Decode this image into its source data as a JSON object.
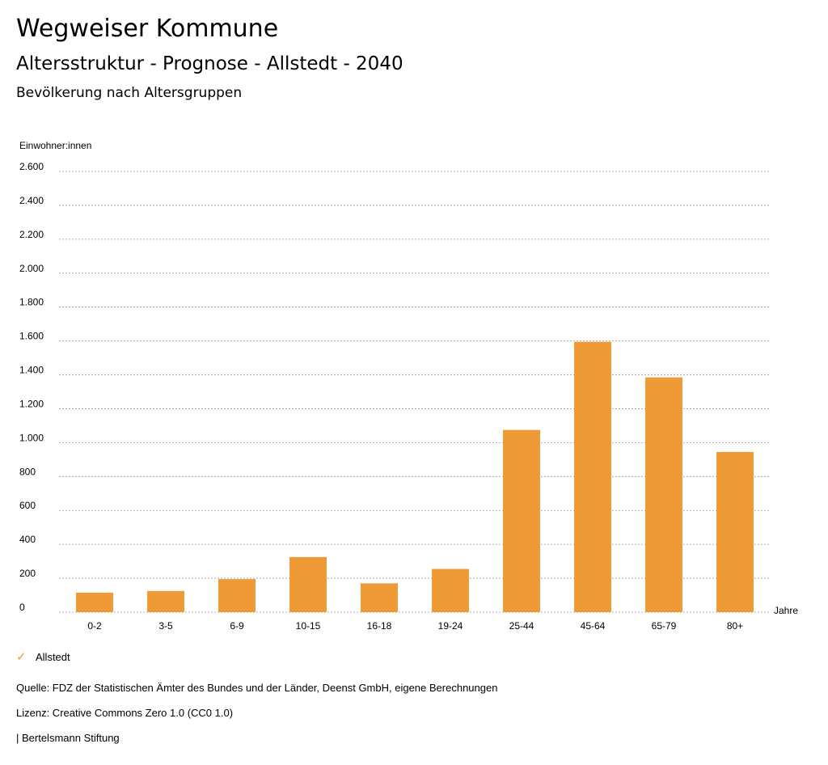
{
  "header": {
    "site_title": "Wegweiser Kommune",
    "page_title": "Altersstruktur - Prognose - Allstedt - 2040",
    "chart_title": "Bevölkerung nach Altersgruppen"
  },
  "legend": {
    "items": [
      {
        "label": "Allstedt",
        "icon": "check-icon",
        "color": "#ee9a37"
      }
    ]
  },
  "footer": {
    "source": "Quelle: FDZ der Statistischen Ämter des Bundes und der Länder, Deenst GmbH, eigene Berechnungen",
    "license": "Lizenz: Creative Commons Zero 1.0 (CC0 1.0)",
    "publisher": "| Bertelsmann Stiftung"
  },
  "chart_data": {
    "type": "bar",
    "title": "Bevölkerung nach Altersgruppen",
    "ylabel": "Einwohner:innen",
    "xlabel": "Jahre",
    "categories": [
      "0-2",
      "3-5",
      "6-9",
      "10-15",
      "16-18",
      "19-24",
      "25-44",
      "45-64",
      "65-79",
      "80+"
    ],
    "series": [
      {
        "name": "Allstedt",
        "color": "#ee9a37",
        "values": [
          115,
          125,
          195,
          325,
          170,
          255,
          1075,
          1595,
          1385,
          945
        ]
      }
    ],
    "ylim": [
      0,
      2600
    ],
    "yticks": [
      0,
      200,
      400,
      600,
      800,
      1000,
      1200,
      1400,
      1600,
      1800,
      2000,
      2200,
      2400,
      2600
    ],
    "ytick_labels": [
      "0",
      "200",
      "400",
      "600",
      "800",
      "1.000",
      "1.200",
      "1.400",
      "1.600",
      "1.800",
      "2.000",
      "2.200",
      "2.400",
      "2.600"
    ],
    "grid": true,
    "legend_position": "bottom-left"
  }
}
